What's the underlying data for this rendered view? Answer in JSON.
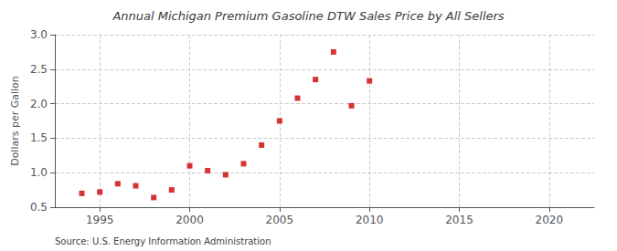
{
  "chart_data": {
    "type": "scatter",
    "title": "Annual Michigan Premium Gasoline DTW Sales Price by All Sellers",
    "ylabel": "Dollars per Gallon",
    "annotation": "Source: U.S. Energy Information Administration",
    "x": [
      1994,
      1995,
      1996,
      1997,
      1998,
      1999,
      2000,
      2001,
      2002,
      2003,
      2004,
      2005,
      2006,
      2007,
      2008,
      2009,
      2010
    ],
    "values": [
      0.7,
      0.72,
      0.84,
      0.81,
      0.64,
      0.75,
      1.1,
      1.03,
      0.97,
      1.13,
      1.4,
      1.75,
      2.08,
      2.35,
      2.75,
      1.97,
      2.33
    ],
    "color": "#cc0000",
    "marker": "square",
    "xlim": [
      1992.5,
      2022.5
    ],
    "ylim": [
      0.5,
      3.0
    ],
    "xticks": [
      1995,
      2000,
      2005,
      2010,
      2015,
      2020
    ],
    "yticks": [
      0.5,
      {
        "value": 1.0,
        "label": "1.0"
      },
      1.5,
      {
        "value": 2.0,
        "label": "2.0"
      },
      2.5,
      {
        "value": 3.0,
        "label": "3.0"
      }
    ],
    "grid": true
  }
}
